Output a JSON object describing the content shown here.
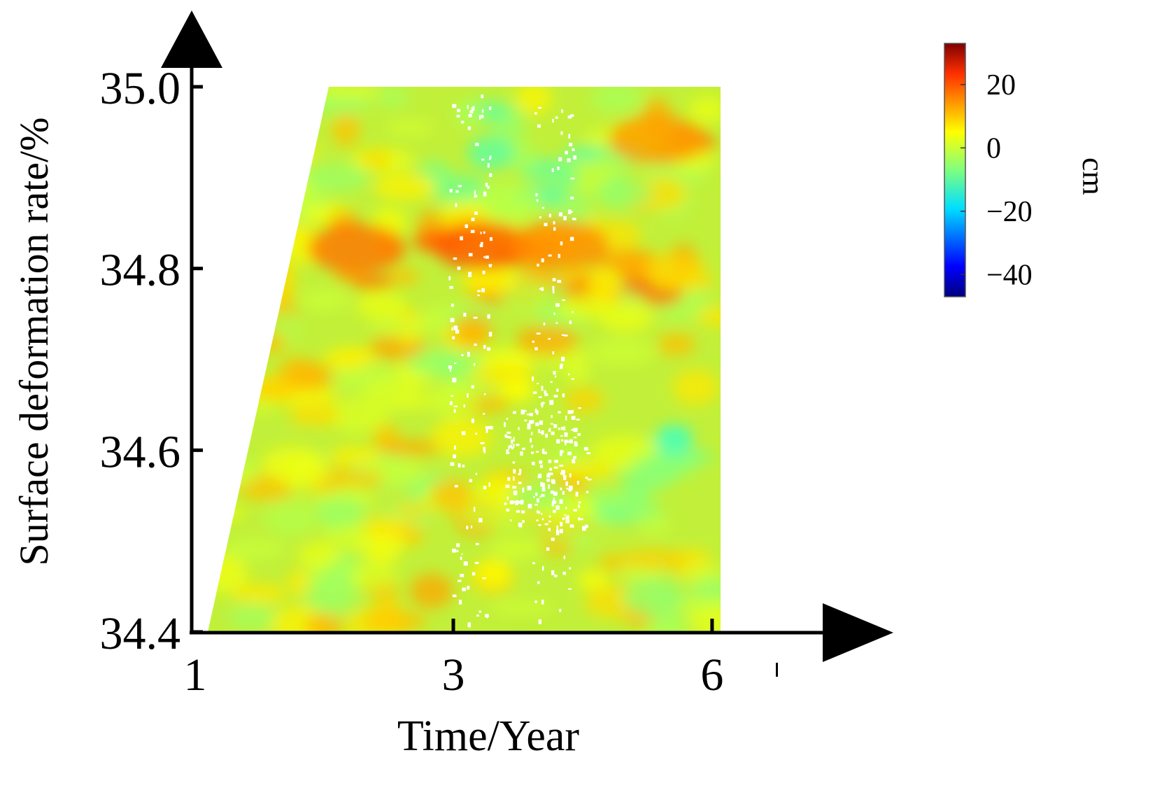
{
  "chart_data": {
    "type": "heatmap",
    "title": "",
    "xlabel": "Time/Year",
    "ylabel": "Surface deformation rate/%",
    "x_ticks": [
      1,
      3,
      6
    ],
    "x_tick_labels": [
      "1",
      "3",
      "6"
    ],
    "y_ticks": [
      34.4,
      34.6,
      34.8,
      35.0
    ],
    "y_tick_labels": [
      "34.4",
      "34.6",
      "34.8",
      "35.0"
    ],
    "xlim": [
      1,
      6
    ],
    "ylim": [
      34.4,
      35.0
    ],
    "colorbar": {
      "label": "cm",
      "range": [
        -47,
        33
      ],
      "ticks": [
        20,
        0,
        -20,
        -40
      ],
      "tick_labels": [
        "20",
        "0",
        "−20",
        "−40"
      ],
      "colormap": "jet"
    },
    "deformation_field": {
      "value_range": [
        -15,
        20
      ],
      "description_values": "mostly -10 to 10 cm; band of 10 to 20 cm near 34.8"
    },
    "colors": {
      "axis": "#000000",
      "text": "#000000",
      "masked": "#ffffff"
    }
  }
}
